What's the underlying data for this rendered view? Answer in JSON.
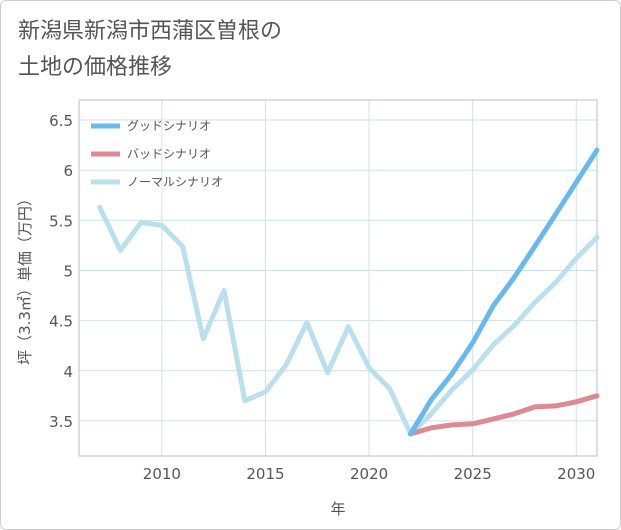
{
  "chart_data": {
    "type": "line",
    "title": [
      "新潟県新潟市西蒲区曽根の",
      "土地の価格推移"
    ],
    "xlabel": "年",
    "ylabel": "坪（3.3㎡）単価（万円）",
    "xlim": [
      2006,
      2031
    ],
    "ylim": [
      3.15,
      6.7
    ],
    "xticks": [
      2010,
      2015,
      2020,
      2025,
      2030
    ],
    "yticks": [
      3.5,
      4,
      4.5,
      5,
      5.5,
      6,
      6.5
    ],
    "ytick_labels": [
      "3.5",
      "4",
      "4.5",
      "5",
      "5.5",
      "6",
      "6.5"
    ],
    "grid": true,
    "legend_position": "top-left",
    "series": [
      {
        "name": "グッドシナリオ",
        "color": "#6bb8ec",
        "x": [
          2022,
          2023,
          2024,
          2025,
          2026,
          2027,
          2028,
          2029,
          2030,
          2031
        ],
        "y": [
          3.37,
          3.71,
          3.97,
          4.28,
          4.65,
          4.93,
          5.24,
          5.56,
          5.88,
          6.2
        ]
      },
      {
        "name": "バッドシナリオ",
        "color": "#de8a93",
        "x": [
          2022,
          2023,
          2024,
          2025,
          2026,
          2027,
          2028,
          2029,
          2030,
          2031
        ],
        "y": [
          3.37,
          3.43,
          3.46,
          3.47,
          3.52,
          3.57,
          3.64,
          3.65,
          3.69,
          3.75
        ]
      },
      {
        "name": "ノーマルシナリオ",
        "color": "#bcdfee",
        "x": [
          2007,
          2008,
          2009,
          2010,
          2011,
          2012,
          2013,
          2014,
          2015,
          2016,
          2017,
          2018,
          2019,
          2020,
          2021,
          2022,
          2023,
          2024,
          2025,
          2026,
          2027,
          2028,
          2029,
          2030,
          2031
        ],
        "y": [
          5.63,
          5.2,
          5.48,
          5.45,
          5.24,
          4.32,
          4.8,
          3.7,
          3.79,
          4.06,
          4.48,
          3.98,
          4.44,
          4.03,
          3.82,
          3.37,
          3.57,
          3.81,
          4.01,
          4.26,
          4.45,
          4.68,
          4.88,
          5.12,
          5.33
        ]
      }
    ]
  }
}
